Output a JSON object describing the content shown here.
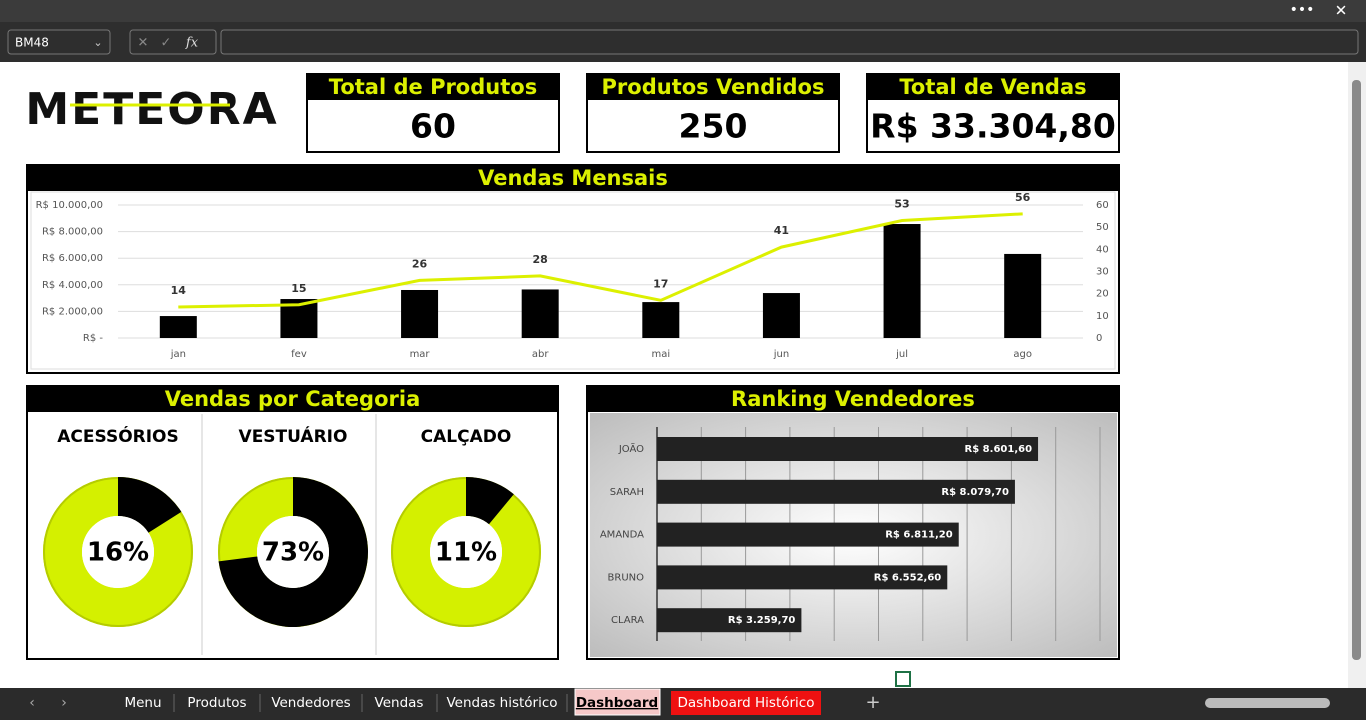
{
  "toolbar": {
    "name_box": "BM48",
    "fx": "fx"
  },
  "header": {
    "logo": "METEORA"
  },
  "kpis": [
    {
      "title": "Total de Produtos",
      "value": "60"
    },
    {
      "title": "Produtos Vendidos",
      "value": "250"
    },
    {
      "title": "Total de Vendas",
      "value": "R$ 33.304,80"
    }
  ],
  "chart_data": [
    {
      "type": "combo",
      "title": "Vendas Mensais",
      "categories": [
        "jan",
        "fev",
        "mar",
        "abr",
        "mai",
        "jun",
        "jul",
        "ago"
      ],
      "series": [
        {
          "kind": "bar",
          "color": "#000000",
          "values": [
            1650,
            2930,
            3610,
            3650,
            2700,
            3380,
            8570,
            6320
          ]
        },
        {
          "kind": "line",
          "axis": "y2",
          "color": "#dcf000",
          "values": [
            14,
            15,
            26,
            28,
            17,
            41,
            53,
            56
          ]
        }
      ],
      "ylim": [
        0,
        10000
      ],
      "yticks": [
        {
          "value": 0,
          "label": "R$ -"
        },
        {
          "value": 2000,
          "label": "R$ 2.000,00"
        },
        {
          "value": 4000,
          "label": "R$ 4.000,00"
        },
        {
          "value": 6000,
          "label": "R$ 6.000,00"
        },
        {
          "value": 8000,
          "label": "R$ 8.000,00"
        },
        {
          "value": 10000,
          "label": "R$ 10.000,00"
        }
      ],
      "y2lim": [
        0,
        60
      ],
      "y2ticks": [
        0,
        10,
        20,
        30,
        40,
        50,
        60
      ],
      "grid": true
    },
    {
      "type": "donut",
      "title": "Vendas por Categoria",
      "series": [
        {
          "name": "ACESSÓRIOS",
          "values": [
            16
          ],
          "value_labels": [
            "16%"
          ]
        },
        {
          "name": "VESTUÁRIO",
          "values": [
            73
          ],
          "value_labels": [
            "73%"
          ]
        },
        {
          "name": "CALÇADO",
          "values": [
            11
          ],
          "value_labels": [
            "11%"
          ]
        }
      ],
      "color": "#000000",
      "ring_color": "#d4f000"
    },
    {
      "type": "hbar",
      "title": "Ranking Vendedores",
      "categories": [
        "JOÃO",
        "SARAH",
        "AMANDA",
        "BRUNO",
        "CLARA"
      ],
      "values": [
        8601.6,
        8079.7,
        6811.2,
        6552.6,
        3259.7
      ],
      "value_labels": [
        "R$ 8.601,60",
        "R$ 8.079,70",
        "R$ 6.811,20",
        "R$ 6.552,60",
        "R$ 3.259,70"
      ],
      "color": "#222222",
      "xlim": [
        0,
        10000
      ],
      "xticks": [
        0,
        1000,
        2000,
        3000,
        4000,
        5000,
        6000,
        7000,
        8000,
        9000,
        10000
      ],
      "tick_labels": false,
      "grid": true
    }
  ],
  "tabs": [
    "Menu",
    "Produtos",
    "Vendedores",
    "Vendas",
    "Vendas histórico",
    "Dashboard",
    "Dashboard Histórico"
  ]
}
